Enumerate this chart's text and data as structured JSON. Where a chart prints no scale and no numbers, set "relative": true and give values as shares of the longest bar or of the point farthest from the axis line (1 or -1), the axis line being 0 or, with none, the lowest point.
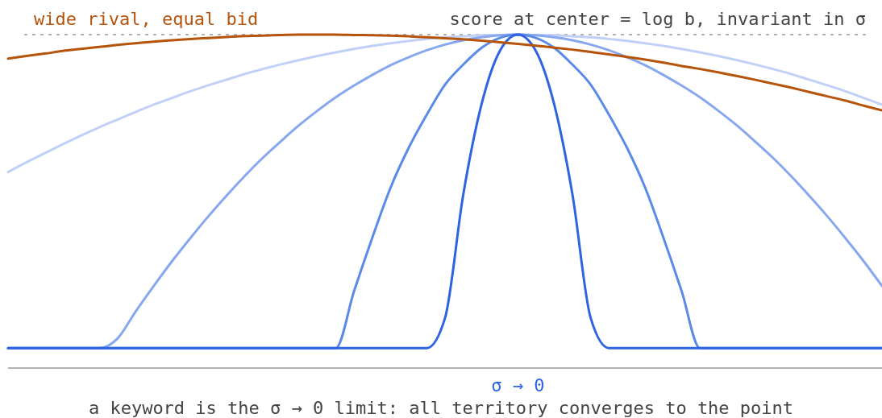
{
  "chart_data": {
    "type": "line",
    "relative": true,
    "legend": false,
    "marker": "none",
    "line_style": "solid",
    "categories": [
      null,
      null,
      null,
      null,
      null,
      null,
      null,
      null,
      null,
      null,
      null,
      null,
      null,
      null,
      null,
      null,
      null,
      null,
      null,
      null,
      null,
      null,
      null,
      null,
      null,
      null,
      null,
      null,
      null,
      null,
      null,
      null,
      null,
      null,
      null,
      null,
      null,
      null,
      null,
      null,
      null,
      null,
      null,
      null,
      null,
      null,
      null,
      null,
      null
    ],
    "series": [
      {
        "color": "#c0d0f6",
        "values": [
          0.588,
          0.617,
          0.644,
          0.671,
          0.697,
          0.722,
          0.745,
          0.768,
          0.79,
          0.81,
          0.83,
          0.848,
          0.865,
          0.882,
          0.897,
          0.911,
          0.924,
          0.936,
          0.947,
          0.957,
          0.966,
          0.974,
          0.981,
          0.987,
          0.992,
          0.995,
          0.998,
          0.999,
          1,
          0.999,
          0.998,
          0.995,
          0.992,
          0.987,
          0.981,
          0.974,
          0.966,
          0.957,
          0.947,
          0.936,
          0.924,
          0.911,
          0.897,
          0.882,
          0.865,
          0.848,
          0.83,
          0.81,
          0.79
        ]
      },
      {
        "color": "#87a8ee",
        "values": [
          0.06,
          0.06,
          0.06,
          0.06,
          0.06,
          0.06,
          0.088,
          0.169,
          0.246,
          0.32,
          0.389,
          0.455,
          0.517,
          0.576,
          0.631,
          0.681,
          0.729,
          0.772,
          0.812,
          0.847,
          0.879,
          0.908,
          0.932,
          0.953,
          0.97,
          0.983,
          0.992,
          0.998,
          1,
          0.998,
          0.992,
          0.983,
          0.97,
          0.953,
          0.932,
          0.908,
          0.879,
          0.847,
          0.812,
          0.772,
          0.729,
          0.681,
          0.631,
          0.576,
          0.517,
          0.455,
          0.389,
          0.32,
          0.246
        ]
      },
      {
        "color": "#5b8ae8",
        "values": [
          0.06,
          0.06,
          0.06,
          0.06,
          0.06,
          0.06,
          0.06,
          0.06,
          0.06,
          0.06,
          0.06,
          0.06,
          0.06,
          0.06,
          0.06,
          0.06,
          0.06,
          0.06,
          0.06,
          0.23,
          0.39,
          0.54,
          0.66,
          0.76,
          0.85,
          0.91,
          0.96,
          0.99,
          1,
          0.99,
          0.96,
          0.91,
          0.85,
          0.76,
          0.66,
          0.54,
          0.39,
          0.23,
          0.06,
          0.06,
          0.06,
          0.06,
          0.06,
          0.06,
          0.06,
          0.06,
          0.06,
          0.06,
          0.06
        ]
      },
      {
        "name": "σ → 0",
        "color": "#2f64e0",
        "values": [
          0.06,
          0.06,
          0.06,
          0.06,
          0.06,
          0.06,
          0.06,
          0.06,
          0.06,
          0.06,
          0.06,
          0.06,
          0.06,
          0.06,
          0.06,
          0.06,
          0.06,
          0.06,
          0.06,
          0.06,
          0.06,
          0.06,
          0.06,
          0.06,
          0.15,
          0.52,
          0.79,
          0.95,
          1,
          0.95,
          0.79,
          0.52,
          0.15,
          0.06,
          0.06,
          0.06,
          0.06,
          0.06,
          0.06,
          0.06,
          0.06,
          0.06,
          0.06,
          0.06,
          0.06,
          0.06,
          0.06,
          0.06,
          0.06
        ]
      },
      {
        "name": "wide rival, equal bid",
        "color": "#b5540a",
        "values": [
          0.928,
          0.936,
          0.943,
          0.951,
          0.957,
          0.963,
          0.969,
          0.974,
          0.979,
          0.983,
          0.987,
          0.99,
          0.993,
          0.996,
          0.997,
          0.999,
          1,
          1,
          1,
          0.999,
          0.998,
          0.997,
          0.995,
          0.992,
          0.989,
          0.986,
          0.982,
          0.977,
          0.972,
          0.967,
          0.961,
          0.955,
          0.948,
          0.941,
          0.933,
          0.925,
          0.916,
          0.906,
          0.897,
          0.887,
          0.876,
          0.865,
          0.853,
          0.841,
          0.828,
          0.815,
          0.802,
          0.787,
          0.773
        ]
      }
    ],
    "ref_lines": [
      {
        "axis": "y",
        "value": 1,
        "label": "score at center = log b, invariant in σ",
        "color": "#999999",
        "line_style": "dashed"
      }
    ],
    "annotations": [
      "a keyword is the σ → 0 limit: all territory converges to the point"
    ]
  }
}
